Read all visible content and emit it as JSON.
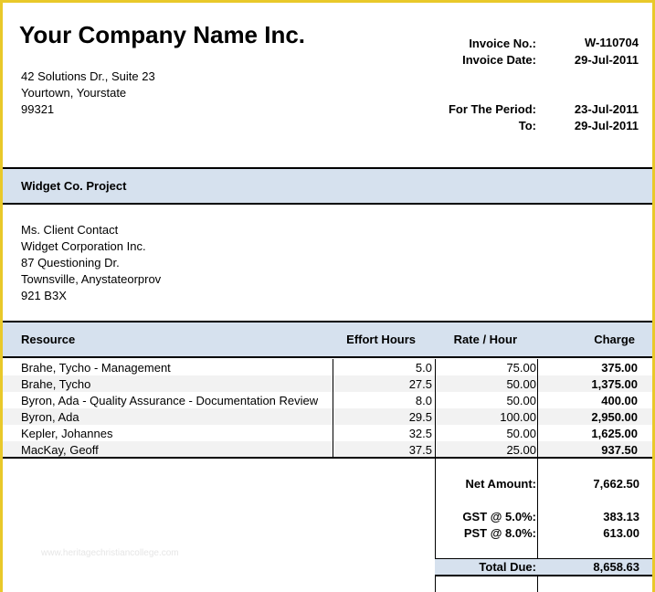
{
  "company": {
    "name": "Your Company Name Inc.",
    "address_lines": [
      "42 Solutions Dr., Suite 23",
      "Yourtown, Yourstate",
      "99321"
    ]
  },
  "invoice": {
    "number_label": "Invoice No.:",
    "number": "W-110704",
    "date_label": "Invoice Date:",
    "date": "29-Jul-2011",
    "period_label": "For The Period:",
    "period_start": "23-Jul-2011",
    "to_label": "To:",
    "period_end": "29-Jul-2011"
  },
  "project": {
    "title": "Widget Co. Project"
  },
  "client": {
    "lines": [
      "Ms. Client Contact",
      "Widget Corporation Inc.",
      "87 Questioning Dr.",
      "Townsville, Anystateorprov",
      "921 B3X"
    ]
  },
  "table": {
    "headers": [
      "Resource",
      "Effort Hours",
      "Rate / Hour",
      "Charge"
    ],
    "rows": [
      [
        "Brahe, Tycho - Management",
        "5.0",
        "75.00",
        "375.00"
      ],
      [
        "Brahe, Tycho",
        "27.5",
        "50.00",
        "1,375.00"
      ],
      [
        "Byron, Ada - Quality Assurance - Documentation Review",
        "8.0",
        "50.00",
        "400.00"
      ],
      [
        "Byron, Ada",
        "29.5",
        "100.00",
        "2,950.00"
      ],
      [
        "Kepler, Johannes",
        "32.5",
        "50.00",
        "1,625.00"
      ],
      [
        "MacKay, Geoff",
        "37.5",
        "25.00",
        "937.50"
      ]
    ]
  },
  "summary": {
    "net_label": "Net Amount:",
    "net_value": "7,662.50",
    "gst_label": "GST @ 5.0%:",
    "gst_value": "383.13",
    "pst_label": "PST @ 8.0%:",
    "pst_value": "613.00",
    "total_label": "Total Due:",
    "total_value": "8,658.63"
  },
  "watermark": "www.heritagechristiancollege.com",
  "colors": {
    "border": "#e9c92a",
    "band": "#d6e1ee",
    "alt_row": "#f2f2f2"
  }
}
